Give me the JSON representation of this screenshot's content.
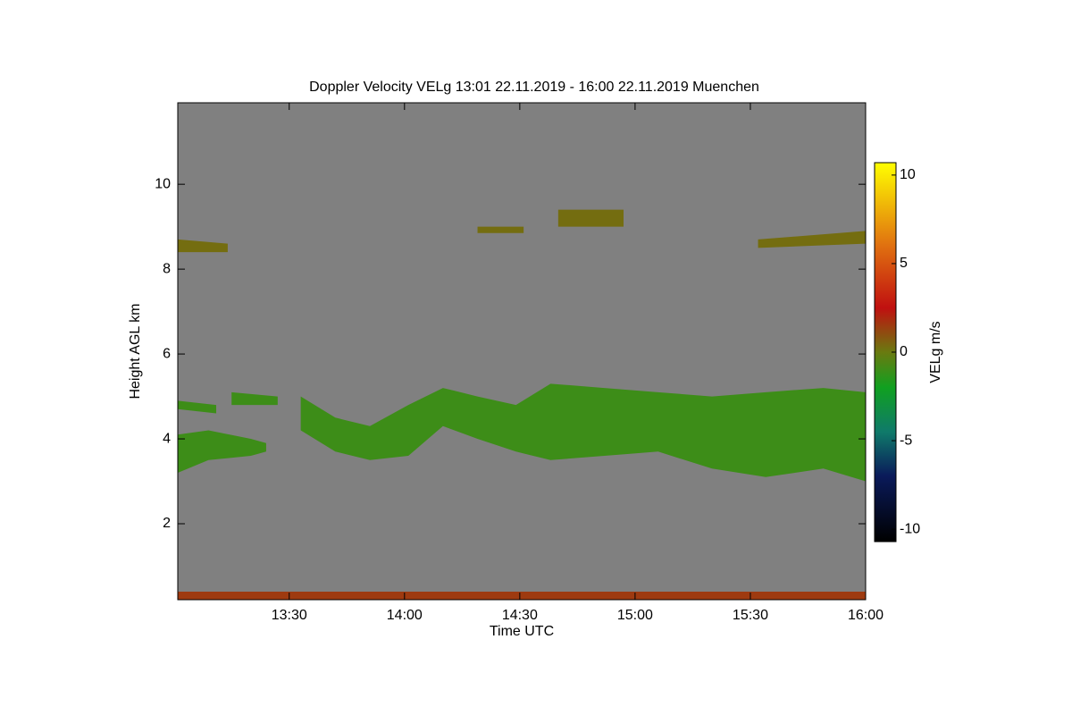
{
  "chart_data": {
    "type": "time-height",
    "title": "Doppler Velocity VELg   13:01 22.11.2019 - 16:00 22.11.2019 Muenchen",
    "x_label": "Time UTC",
    "y_label": "Height AGL km",
    "colorbar_label": "VELg m/s",
    "xlim": [
      781,
      960
    ],
    "xticks": [
      {
        "value": 810,
        "label": "13:30"
      },
      {
        "value": 840,
        "label": "14:00"
      },
      {
        "value": 870,
        "label": "14:30"
      },
      {
        "value": 900,
        "label": "15:00"
      },
      {
        "value": 930,
        "label": "15:30"
      },
      {
        "value": 960,
        "label": "16:00"
      }
    ],
    "ylim": [
      0.21,
      11.92
    ],
    "yticks": [
      2,
      4,
      6,
      8,
      10
    ],
    "clim": [
      -10.7,
      10.7
    ],
    "cticks": [
      -10,
      -5,
      0,
      5,
      10
    ],
    "background": "#808080",
    "colormap": [
      {
        "value": -10.7,
        "color": "#000000"
      },
      {
        "value": -7,
        "color": "#0a1a5a"
      },
      {
        "value": -4.5,
        "color": "#0f7a6a"
      },
      {
        "value": -2,
        "color": "#10a020"
      },
      {
        "value": 0,
        "color": "#6a7a10"
      },
      {
        "value": 2.5,
        "color": "#c01010"
      },
      {
        "value": 6,
        "color": "#e07010"
      },
      {
        "value": 10.7,
        "color": "#ffff00"
      }
    ],
    "layers": [
      {
        "x": [
          781,
          789,
          800,
          804
        ],
        "top": [
          4.1,
          4.2,
          4.0,
          3.9
        ],
        "base": [
          3.2,
          3.5,
          3.6,
          3.7
        ],
        "value": -1
      },
      {
        "x": [
          813,
          822,
          831,
          841,
          850,
          859,
          869,
          878,
          892,
          906,
          920,
          934,
          949,
          960
        ],
        "top": [
          5.0,
          4.5,
          4.3,
          4.8,
          5.2,
          5.0,
          4.8,
          5.3,
          5.2,
          5.1,
          5.0,
          5.1,
          5.2,
          5.1
        ],
        "base": [
          4.2,
          3.7,
          3.5,
          3.6,
          4.3,
          4.0,
          3.7,
          3.5,
          3.6,
          3.7,
          3.3,
          3.1,
          3.3,
          3.0
        ],
        "value": -1
      },
      {
        "x": [
          781,
          791
        ],
        "top": [
          4.9,
          4.8
        ],
        "base": [
          4.7,
          4.6
        ],
        "value": -1
      },
      {
        "x": [
          795,
          807
        ],
        "top": [
          5.1,
          5.0
        ],
        "base": [
          4.8,
          4.8
        ],
        "value": -1
      },
      {
        "x": [
          781,
          794
        ],
        "top": [
          8.7,
          8.6
        ],
        "base": [
          8.4,
          8.4
        ],
        "value": 0.3
      },
      {
        "x": [
          859,
          871
        ],
        "top": [
          9.0,
          9.0
        ],
        "base": [
          8.85,
          8.85
        ],
        "value": 0.3
      },
      {
        "x": [
          880,
          897
        ],
        "top": [
          9.4,
          9.4
        ],
        "base": [
          9.0,
          9.0
        ],
        "value": 0.3
      },
      {
        "x": [
          932,
          960
        ],
        "top": [
          8.7,
          8.9
        ],
        "base": [
          8.5,
          8.6
        ],
        "value": 0.3
      },
      {
        "x": [
          781,
          960
        ],
        "top": [
          0.4,
          0.4
        ],
        "base": [
          0.21,
          0.21
        ],
        "value": 1.5
      }
    ]
  }
}
